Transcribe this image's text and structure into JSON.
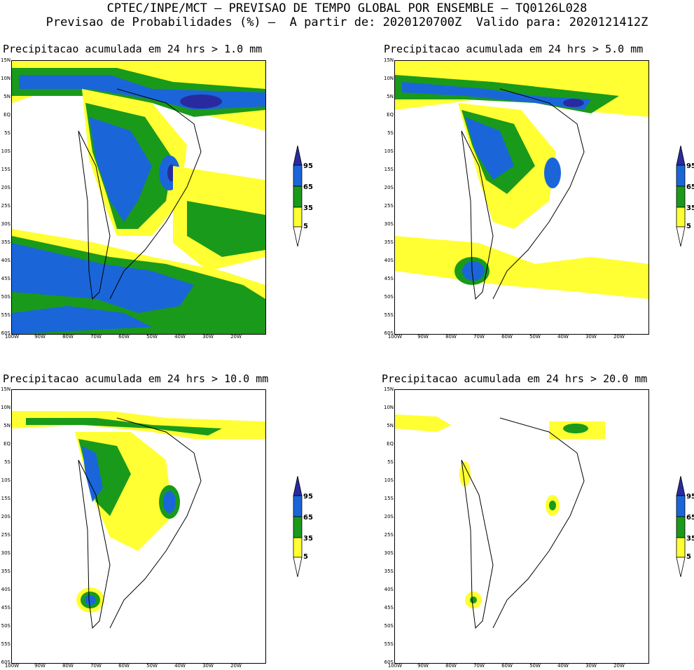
{
  "header": {
    "line1": "CPTEC/INPE/MCT – PREVISAO DE TEMPO GLOBAL POR ENSEMBLE – TQ0126L028",
    "line2": "Previsao de Probabilidades (%) –  A partir de: 2020120700Z  Valido para: 2020121412Z"
  },
  "panels": [
    {
      "title": "Precipitacao acumulada em 24 hrs > 1.0 mm"
    },
    {
      "title": "Precipitacao acumulada em 24 hrs > 5.0 mm"
    },
    {
      "title": "Precipitacao acumulada em 24 hrs > 10.0 mm"
    },
    {
      "title": "Precipitacao acumulada em 24 hrs > 20.0 mm"
    }
  ],
  "lat_labels": [
    "15N",
    "10N",
    "5N",
    "EQ",
    "5S",
    "10S",
    "15S",
    "20S",
    "25S",
    "30S",
    "35S",
    "40S",
    "45S",
    "50S",
    "55S",
    "60S"
  ],
  "lon_labels": [
    "100W",
    "90W",
    "80W",
    "70W",
    "60W",
    "50W",
    "40W",
    "30W",
    "20W"
  ],
  "colorbar": {
    "labels": [
      "95",
      "65",
      "35",
      "5"
    ],
    "colors": {
      "yellow": "#ffff33",
      "green": "#1a9a1a",
      "blue": "#1a66d9",
      "dark": "#2a2aa0"
    }
  }
}
